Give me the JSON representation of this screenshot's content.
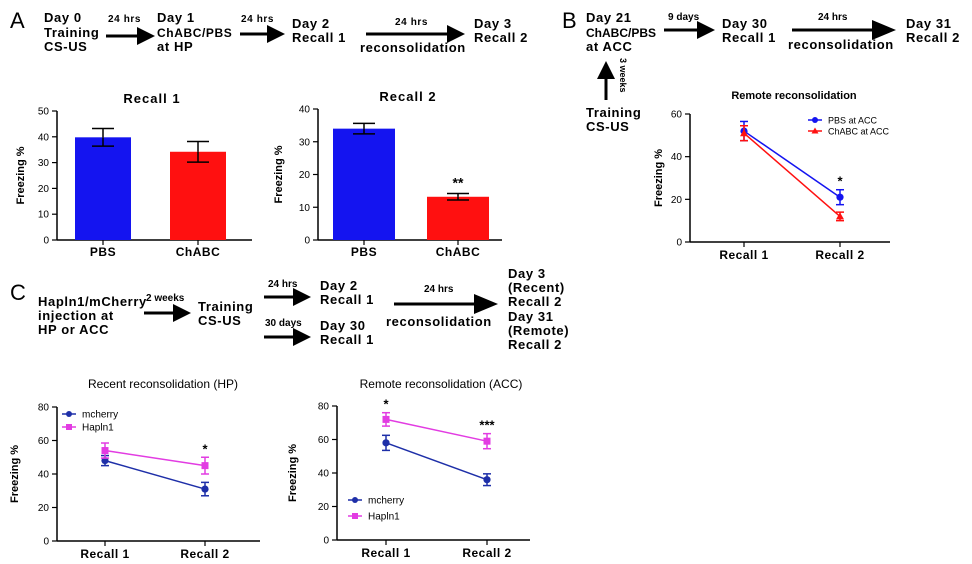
{
  "panels": {
    "a": "A",
    "b": "B",
    "c": "C"
  },
  "colors": {
    "blue": "#1414f0",
    "red": "#ff1010",
    "navy": "#1e2fa8",
    "magenta": "#e23ce2",
    "black": "#000000"
  },
  "timeline_a": {
    "day0": [
      "Day 0",
      "Training",
      "CS-US"
    ],
    "arrow1": "24 hrs",
    "day1": [
      "Day 1",
      "ChABC/PBS",
      "at HP"
    ],
    "arrow2": "24 hrs",
    "day2": [
      "Day 2",
      "Recall 1"
    ],
    "arrow3": "24 hrs",
    "arrow3_below": "reconsolidation",
    "day3": [
      "Day 3",
      "Recall 2"
    ]
  },
  "timeline_b": {
    "day21": [
      "Day 21",
      "ChABC/PBS",
      "at ACC"
    ],
    "up_arrow": "3 weeks",
    "training": [
      "Training",
      "CS-US"
    ],
    "arrow1": "9 days",
    "day30": [
      "Day 30",
      "Recall 1"
    ],
    "arrow2": "24 hrs",
    "arrow2_below": "reconsolidation",
    "day31": [
      "Day 31",
      "Recall 2"
    ]
  },
  "timeline_c": {
    "injection": [
      "Hapln1/mCherry",
      "injection at",
      "HP or ACC"
    ],
    "arrow1": "2 weeks",
    "training": [
      "Training",
      "CS-US"
    ],
    "arrow_top": "24 hrs",
    "day2": [
      "Day 2",
      "Recall 1"
    ],
    "arrow_bottom": "30 days",
    "day30": [
      "Day 30",
      "Recall 1"
    ],
    "arrow_big": "24 hrs",
    "arrow_big_below": "reconsolidation",
    "day3": [
      "Day 3",
      "(Recent)",
      "Recall 2"
    ],
    "day31": [
      "Day 31",
      "(Remote)",
      "Recall 2"
    ]
  },
  "chart_data": [
    {
      "id": "recall1_bar",
      "type": "bar",
      "title": "Recall 1",
      "ylabel": "Freezing %",
      "xlabel": "",
      "ylim": [
        0,
        50
      ],
      "yticks": [
        0,
        10,
        20,
        30,
        40,
        50
      ],
      "categories": [
        "PBS",
        "ChABC"
      ],
      "values": [
        39.8,
        34.2
      ],
      "errors": [
        3.4,
        4.0
      ],
      "colors": [
        "#1414f0",
        "#ff1010"
      ],
      "annotations": [
        "",
        ""
      ]
    },
    {
      "id": "recall2_bar",
      "type": "bar",
      "title": "Recall 2",
      "ylabel": "Freezing %",
      "xlabel": "",
      "ylim": [
        0,
        40
      ],
      "yticks": [
        0,
        10,
        20,
        30,
        40
      ],
      "categories": [
        "PBS",
        "ChABC"
      ],
      "values": [
        34.0,
        13.2
      ],
      "errors": [
        1.6,
        1.0
      ],
      "colors": [
        "#1414f0",
        "#ff1010"
      ],
      "annotations": [
        "",
        "**"
      ]
    },
    {
      "id": "remote_acc_b",
      "type": "line",
      "title": "Remote reconsolidation",
      "ylabel": "Freezing %",
      "xlabel": "",
      "ylim": [
        0,
        60
      ],
      "yticks": [
        0,
        20,
        40,
        60
      ],
      "categories": [
        "Recall 1",
        "Recall 2"
      ],
      "legend_position": "top-right",
      "series": [
        {
          "name": "PBS at ACC",
          "values": [
            52,
            21
          ],
          "errors": [
            4.5,
            3.5
          ],
          "color": "#1414f0",
          "marker": "circle"
        },
        {
          "name": "ChABC at ACC",
          "values": [
            51,
            12
          ],
          "errors": [
            3.5,
            2.0
          ],
          "color": "#ff1010",
          "marker": "triangle"
        }
      ],
      "annotations": [
        "",
        "*"
      ]
    },
    {
      "id": "recent_hp",
      "type": "line",
      "title": "Recent reconsolidation (HP)",
      "ylabel": "Freezing %",
      "xlabel": "",
      "ylim": [
        0,
        80
      ],
      "yticks": [
        0,
        20,
        40,
        60,
        80
      ],
      "categories": [
        "Recall 1",
        "Recall 2"
      ],
      "legend_position": "top-left",
      "series": [
        {
          "name": "mcherry",
          "values": [
            48,
            31
          ],
          "errors": [
            3.0,
            4.0
          ],
          "color": "#1e2fa8",
          "marker": "circle"
        },
        {
          "name": "Hapln1",
          "values": [
            54,
            45
          ],
          "errors": [
            4.5,
            5.0
          ],
          "color": "#e23ce2",
          "marker": "square"
        }
      ],
      "annotations": [
        "",
        "*"
      ]
    },
    {
      "id": "remote_acc_c",
      "type": "line",
      "title": "Remote reconsolidation (ACC)",
      "ylabel": "Freezing %",
      "xlabel": "",
      "ylim": [
        0,
        80
      ],
      "yticks": [
        0,
        20,
        40,
        60,
        80
      ],
      "categories": [
        "Recall 1",
        "Recall 2"
      ],
      "legend_position": "bottom-left",
      "series": [
        {
          "name": "mcherry",
          "values": [
            58,
            36
          ],
          "errors": [
            4.5,
            3.5
          ],
          "color": "#1e2fa8",
          "marker": "circle"
        },
        {
          "name": "Hapln1",
          "values": [
            72,
            59
          ],
          "errors": [
            4.0,
            4.5
          ],
          "color": "#e23ce2",
          "marker": "square"
        }
      ],
      "annotations": [
        "*",
        "***"
      ]
    }
  ]
}
